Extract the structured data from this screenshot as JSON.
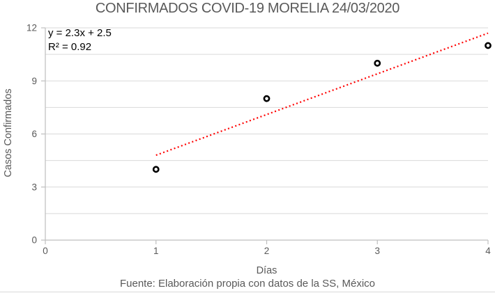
{
  "title": "CONFIRMADOS COVID-19 MORELIA 24/03/2020",
  "footer": {
    "source": "Fuente: Elaboración propia con datos de la SS, México"
  },
  "chart_data": {
    "type": "scatter",
    "title": "CONFIRMADOS COVID-19 MORELIA 24/03/2020",
    "xlabel": "Días",
    "ylabel": "Casos Confirmados",
    "x": [
      1,
      2,
      3,
      4
    ],
    "y": [
      4,
      8,
      10,
      11
    ],
    "xlim": [
      0,
      4
    ],
    "ylim": [
      0,
      12
    ],
    "x_ticks": [
      0,
      1,
      2,
      3,
      4
    ],
    "y_ticks": [
      0,
      3,
      6,
      9,
      12
    ],
    "y_minor_unit": 1.5,
    "grid": "horizontal-major-and-minor",
    "legend": "none",
    "trendline": {
      "equation": "y = 2.3x + 2.5",
      "r2": "R² = 0.92",
      "slope": 2.3,
      "intercept": 2.5,
      "x_start": 1,
      "x_end": 4,
      "style": "dotted",
      "color": "#ff0000"
    },
    "marker": {
      "shape": "open-circle",
      "stroke_color": "#000000",
      "fill_color": "#ffffff"
    },
    "colors": {
      "grid": "#d9d9d9",
      "axis": "#bfbfbf",
      "text": "#595959",
      "equation_text": "#000000"
    }
  }
}
